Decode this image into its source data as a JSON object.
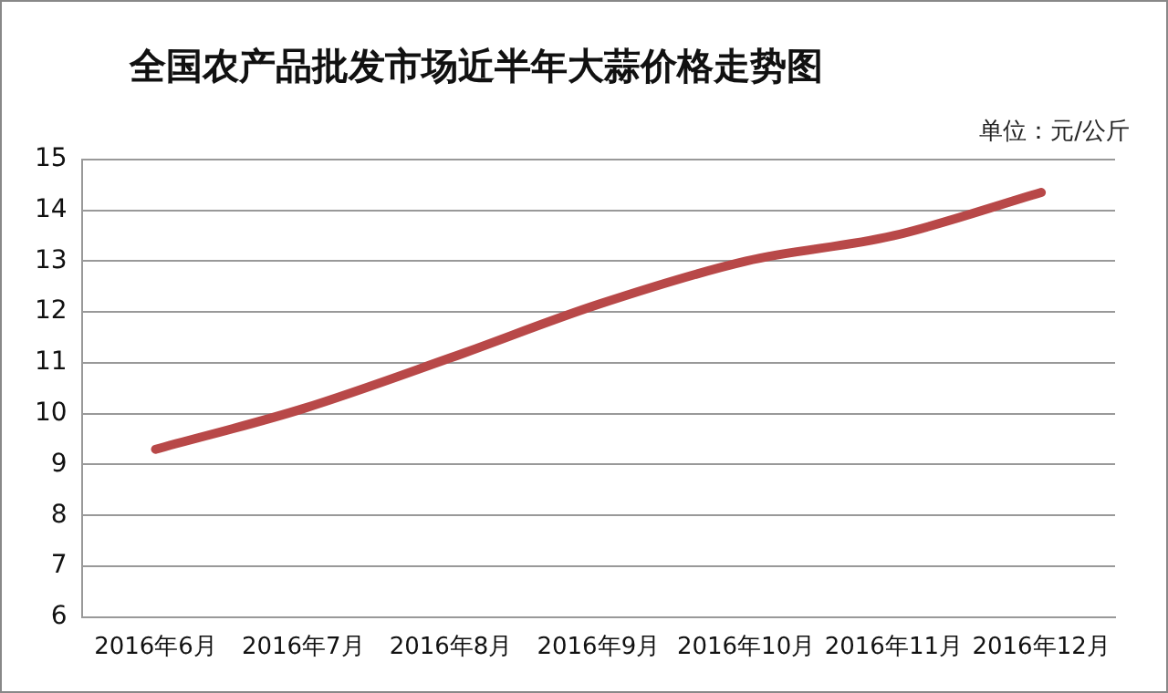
{
  "chart_data": {
    "type": "line",
    "title": "全国农产品批发市场近半年大蒜价格走势图",
    "annotations": [
      "单位：元/公斤"
    ],
    "categories": [
      "2016年6月",
      "2016年7月",
      "2016年8月",
      "2016年9月",
      "2016年10月",
      "2016年11月",
      "2016年12月"
    ],
    "series": [
      {
        "color": "#b84848",
        "values": [
          9.3,
          10.1,
          11.1,
          12.15,
          13.0,
          13.5,
          14.35
        ]
      }
    ],
    "ylim": [
      6,
      15
    ],
    "yticks": [
      6,
      7,
      8,
      9,
      10,
      11,
      12,
      13,
      14,
      15
    ],
    "grid": "y",
    "legend": false,
    "marker": "none",
    "line_style": "solid"
  }
}
